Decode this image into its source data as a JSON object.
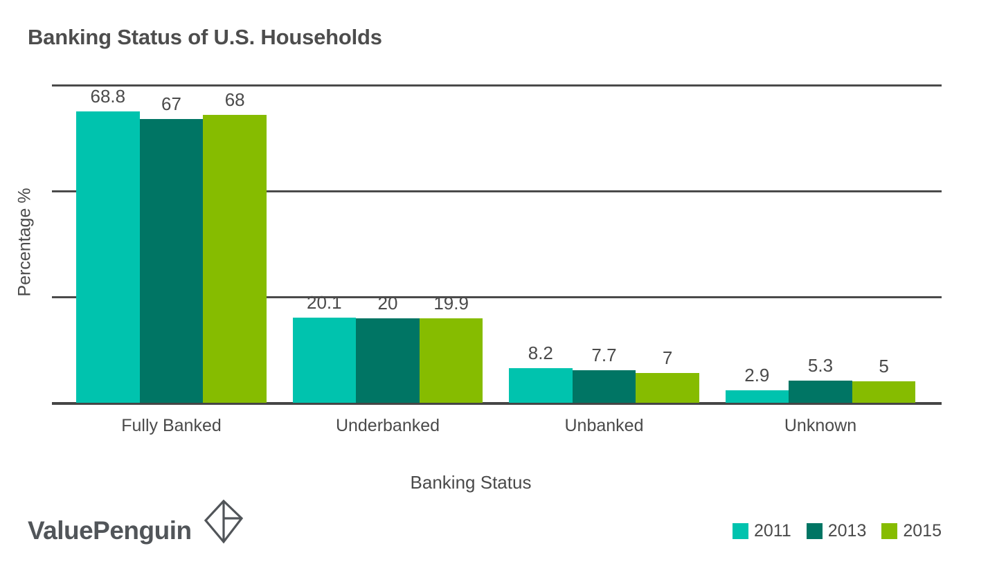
{
  "chart_data": {
    "type": "bar",
    "title": "Banking Status of U.S. Households",
    "xlabel": "Banking Status",
    "ylabel": "Percentage %",
    "categories": [
      "Fully Banked",
      "Underbanked",
      "Unbanked",
      "Unknown"
    ],
    "series": [
      {
        "name": "2011",
        "color": "#00C3AE",
        "values": [
          68.8,
          20.1,
          8.2,
          2.9
        ]
      },
      {
        "name": "2013",
        "color": "#007564",
        "values": [
          67,
          20,
          7.7,
          5.3
        ]
      },
      {
        "name": "2015",
        "color": "#86BC00",
        "values": [
          68,
          19.9,
          7,
          5
        ]
      }
    ],
    "ylim": [
      0,
      75
    ],
    "gridline_values": [
      0,
      25,
      50,
      75
    ],
    "grid": "horizontal",
    "y_tick_labels_visible": false,
    "value_labels": true,
    "legend_position": "bottom-right"
  },
  "branding": {
    "logo_text": "ValuePenguin"
  },
  "colors": {
    "background": "#FFFFFF",
    "grid": "#4A4A4A",
    "axis": "#454545",
    "text": "#4A4A4A",
    "title": "#4D4D4D",
    "logo": "#515559"
  }
}
